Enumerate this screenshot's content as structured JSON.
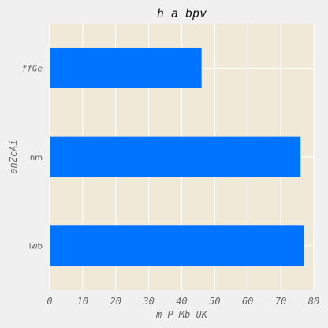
{
  "chart_data": {
    "type": "bar",
    "orientation": "horizontal",
    "title": "h a bpv",
    "xlabel": "m P Mb UK",
    "ylabel": "anZcAi",
    "categories": [
      "lwb",
      "nm",
      "ffGe"
    ],
    "values": [
      77,
      76,
      46
    ],
    "xlim": [
      0,
      80
    ],
    "xticks": [
      "0",
      "10",
      "20",
      "30",
      "40",
      "50",
      "60",
      "70",
      "80"
    ],
    "grid": true,
    "bar_color": "#0073ff",
    "plot_background": "#f0e9d7",
    "page_background": "#f0f0f0"
  }
}
